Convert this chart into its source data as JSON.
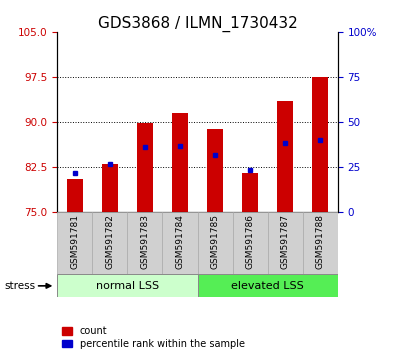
{
  "title": "GDS3868 / ILMN_1730432",
  "samples": [
    "GSM591781",
    "GSM591782",
    "GSM591783",
    "GSM591784",
    "GSM591785",
    "GSM591786",
    "GSM591787",
    "GSM591788"
  ],
  "red_bar_tops": [
    80.5,
    83.0,
    89.8,
    91.5,
    88.8,
    81.5,
    93.5,
    97.5
  ],
  "blue_dot_y": [
    81.5,
    83.0,
    85.8,
    86.0,
    84.5,
    82.0,
    86.5,
    87.0
  ],
  "bar_bottom": 75.0,
  "ylim_left": [
    75,
    105
  ],
  "yticks_left": [
    75,
    82.5,
    90,
    97.5,
    105
  ],
  "ylim_right": [
    0,
    100
  ],
  "yticks_right": [
    0,
    25,
    50,
    75,
    100
  ],
  "yticklabels_right": [
    "0",
    "25",
    "50",
    "75",
    "100%"
  ],
  "group1_label": "normal LSS",
  "group2_label": "elevated LSS",
  "group1_indices": [
    0,
    1,
    2,
    3
  ],
  "group2_indices": [
    4,
    5,
    6,
    7
  ],
  "stress_label": "stress",
  "legend_red": "count",
  "legend_blue": "percentile rank within the sample",
  "red_color": "#cc0000",
  "blue_color": "#0000cc",
  "group1_light_green": "#ccffcc",
  "group2_dark_green": "#55ee55",
  "bar_width": 0.45,
  "title_fontsize": 11,
  "tick_label_fontsize": 7.5,
  "sample_label_fontsize": 6.5,
  "group_label_fontsize": 8
}
